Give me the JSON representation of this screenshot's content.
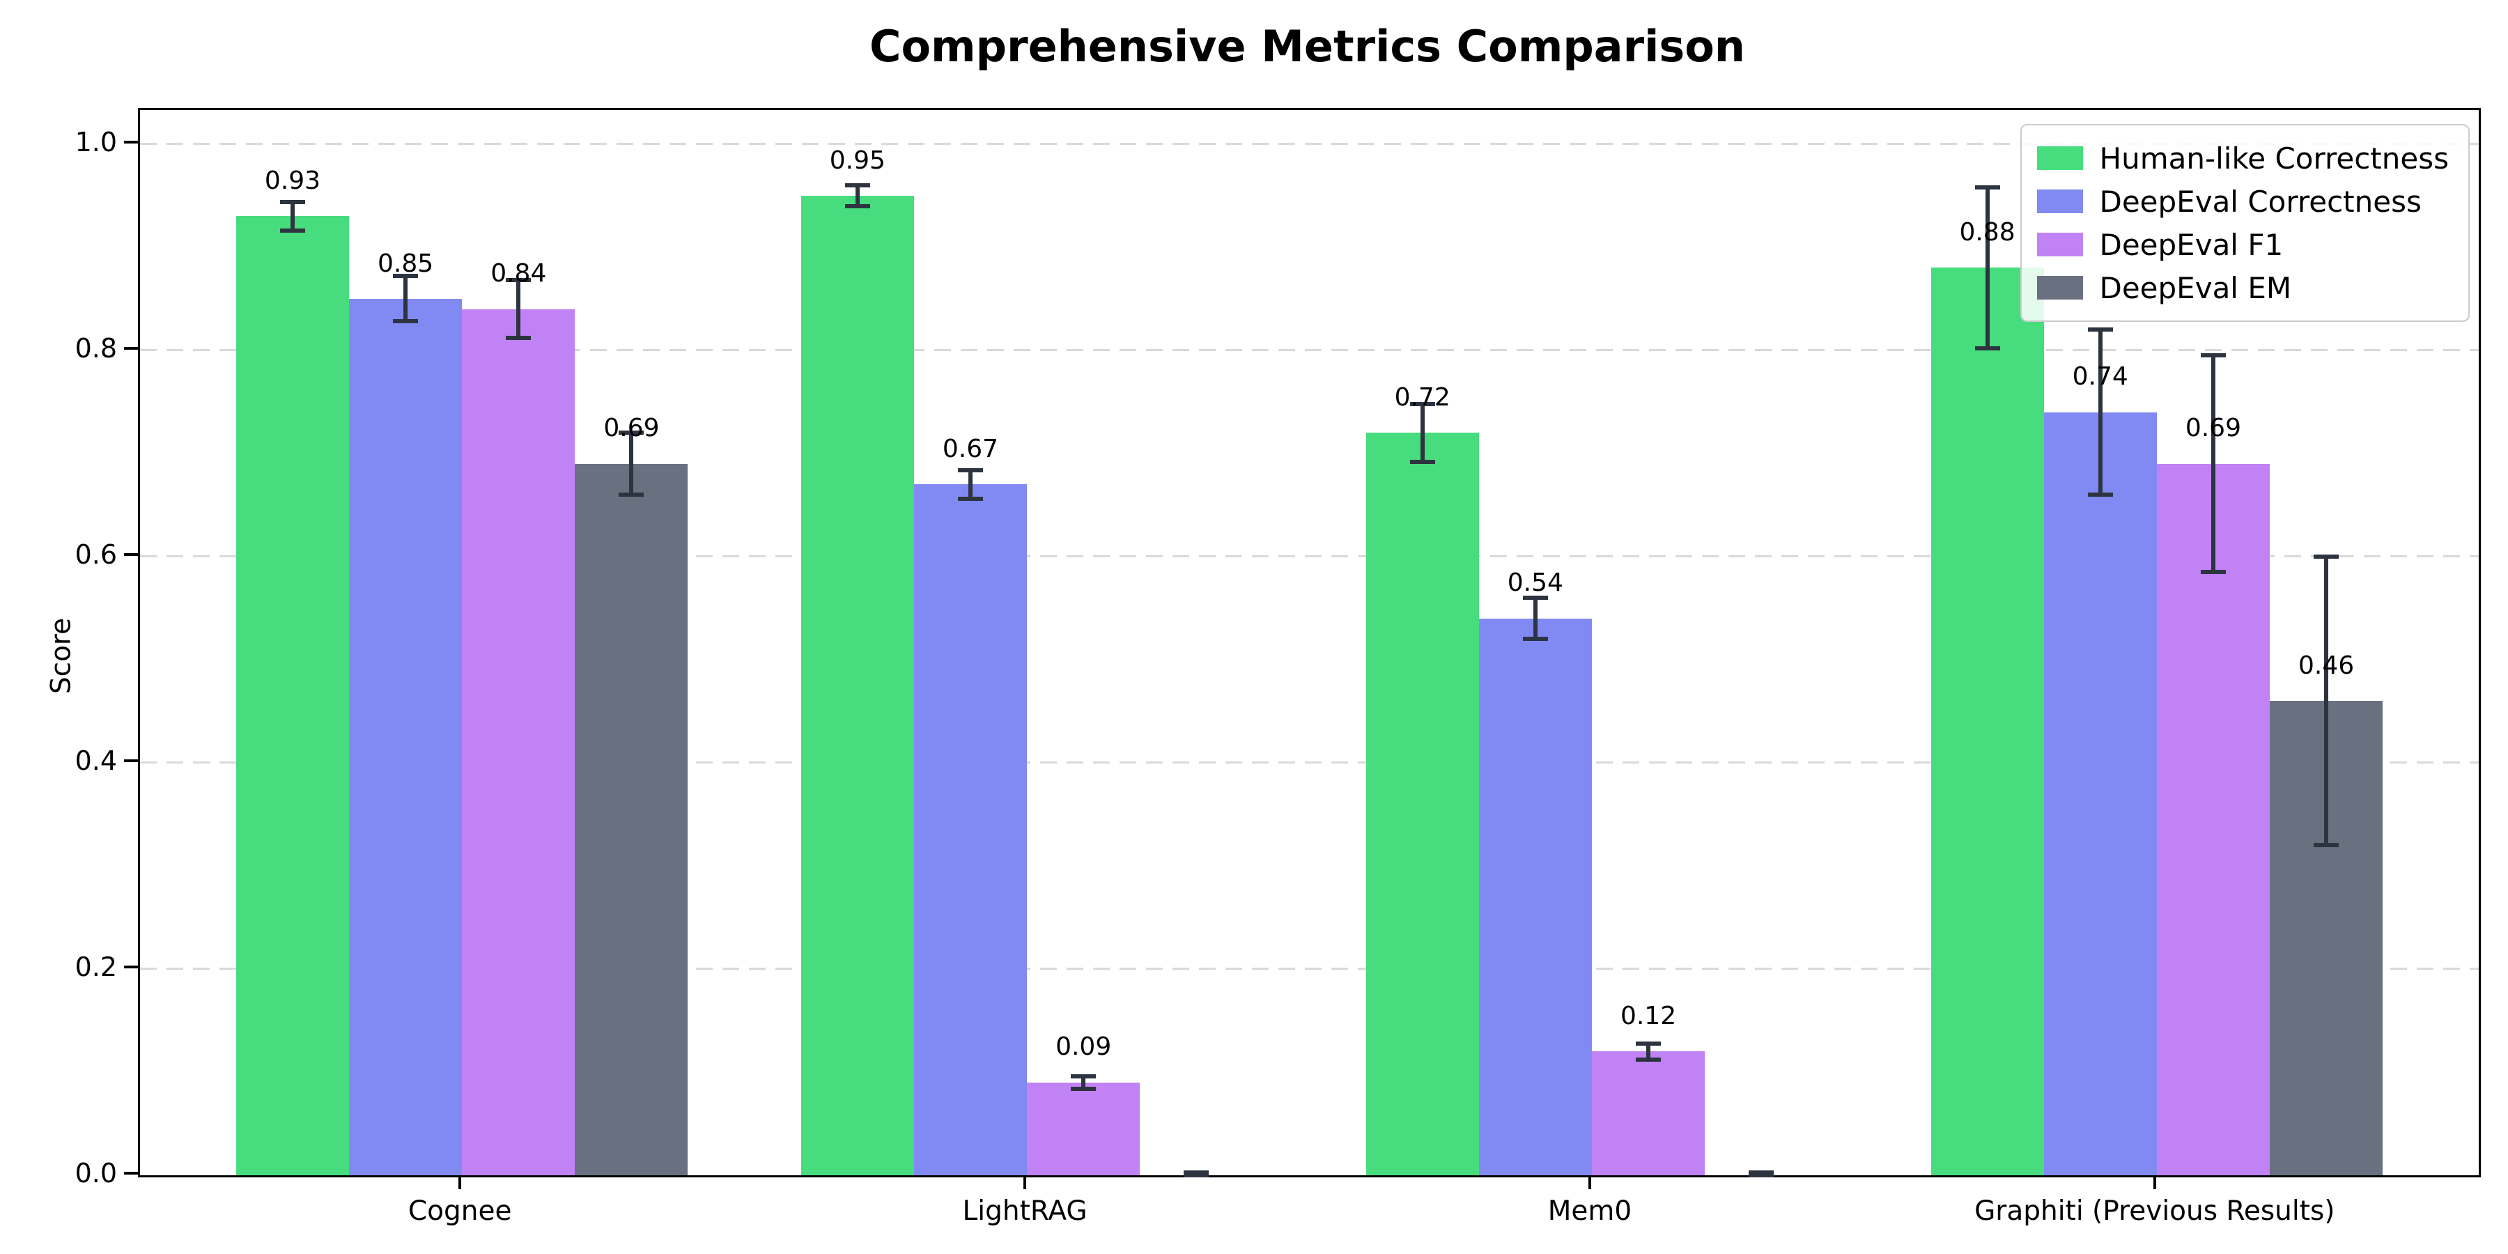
{
  "chart_data": {
    "type": "bar",
    "title": "Comprehensive Metrics Comparison",
    "xlabel": "",
    "ylabel": "Score",
    "categories": [
      "Cognee",
      "LightRAG",
      "Mem0",
      "Graphiti (Previous Results)"
    ],
    "series": [
      {
        "name": "Human-like Correctness",
        "color": "#47DD7E",
        "values": [
          0.93,
          0.95,
          0.72,
          0.88
        ],
        "errors": [
          0.014,
          0.01,
          0.028,
          0.078
        ],
        "value_labels": [
          "0.93",
          "0.95",
          "0.72",
          "0.88"
        ]
      },
      {
        "name": "DeepEval Correctness",
        "color": "#818AF3",
        "values": [
          0.85,
          0.67,
          0.54,
          0.74
        ],
        "errors": [
          0.022,
          0.014,
          0.02,
          0.08
        ],
        "value_labels": [
          "0.85",
          "0.67",
          "0.54",
          "0.74"
        ]
      },
      {
        "name": "DeepEval F1",
        "color": "#C082F5",
        "values": [
          0.84,
          0.09,
          0.12,
          0.69
        ],
        "errors": [
          0.028,
          0.006,
          0.008,
          0.105
        ],
        "value_labels": [
          "0.84",
          "0.09",
          "0.12",
          "0.69"
        ]
      },
      {
        "name": "DeepEval EM",
        "color": "#697080",
        "values": [
          0.69,
          0.0,
          0.0,
          0.46
        ],
        "errors": [
          0.03,
          0.003,
          0.003,
          0.14
        ],
        "value_labels": [
          "0.69",
          "",
          "",
          "0.46"
        ]
      }
    ],
    "ytick_labels": [
      "0.0",
      "0.2",
      "0.4",
      "0.6",
      "0.8",
      "1.0"
    ],
    "yticks": [
      0.0,
      0.2,
      0.4,
      0.6,
      0.8,
      1.0
    ],
    "ylim": [
      0,
      1.033
    ],
    "grid": {
      "axis": "y",
      "style": "dashed",
      "color": "#d9d9d9"
    },
    "error_bar_color": "#2d3440",
    "legend_position": "upper right"
  }
}
